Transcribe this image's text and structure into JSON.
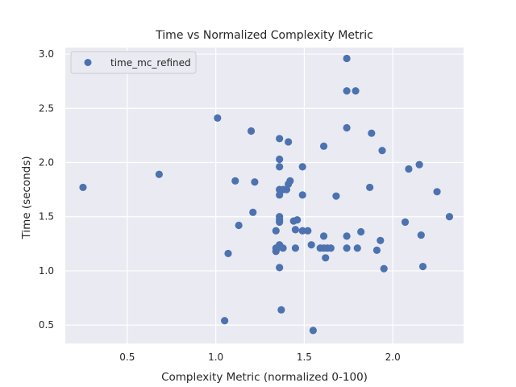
{
  "chart_data": {
    "type": "scatter",
    "title": "Time vs Normalized Complexity Metric",
    "xlabel": "Complexity Metric (normalized 0-100)",
    "ylabel": "Time (seconds)",
    "xlim": [
      0.15,
      2.4
    ],
    "ylim": [
      0.33,
      3.06
    ],
    "xticks": [
      0.5,
      1.0,
      1.5,
      2.0
    ],
    "xtick_labels": [
      "0.5",
      "1.0",
      "1.5",
      "2.0"
    ],
    "yticks": [
      0.5,
      1.0,
      1.5,
      2.0,
      2.5,
      3.0
    ],
    "ytick_labels": [
      "0.5",
      "1.0",
      "1.5",
      "2.0",
      "2.5",
      "3.0"
    ],
    "grid": true,
    "legend_position": "top-left",
    "background_color": "#eaeaf2",
    "series": [
      {
        "name": "time_mc_refined",
        "color": "#4c72b0",
        "points": [
          [
            0.25,
            1.77
          ],
          [
            0.68,
            1.89
          ],
          [
            1.01,
            2.41
          ],
          [
            1.05,
            0.54
          ],
          [
            1.07,
            1.16
          ],
          [
            1.11,
            1.83
          ],
          [
            1.13,
            1.42
          ],
          [
            1.2,
            2.29
          ],
          [
            1.21,
            1.54
          ],
          [
            1.22,
            1.82
          ],
          [
            1.34,
            1.37
          ],
          [
            1.34,
            1.21
          ],
          [
            1.34,
            1.18
          ],
          [
            1.36,
            2.22
          ],
          [
            1.36,
            2.03
          ],
          [
            1.36,
            1.96
          ],
          [
            1.36,
            1.75
          ],
          [
            1.36,
            1.7
          ],
          [
            1.36,
            1.5
          ],
          [
            1.36,
            1.47
          ],
          [
            1.36,
            1.45
          ],
          [
            1.36,
            1.24
          ],
          [
            1.36,
            1.22
          ],
          [
            1.36,
            1.03
          ],
          [
            1.37,
            0.64
          ],
          [
            1.38,
            1.75
          ],
          [
            1.38,
            1.21
          ],
          [
            1.4,
            1.75
          ],
          [
            1.41,
            2.19
          ],
          [
            1.41,
            1.8
          ],
          [
            1.42,
            1.83
          ],
          [
            1.44,
            1.46
          ],
          [
            1.45,
            1.38
          ],
          [
            1.45,
            1.21
          ],
          [
            1.46,
            1.47
          ],
          [
            1.49,
            1.96
          ],
          [
            1.49,
            1.7
          ],
          [
            1.49,
            1.37
          ],
          [
            1.52,
            1.37
          ],
          [
            1.54,
            1.24
          ],
          [
            1.55,
            0.45
          ],
          [
            1.59,
            1.21
          ],
          [
            1.61,
            2.15
          ],
          [
            1.61,
            1.32
          ],
          [
            1.61,
            1.21
          ],
          [
            1.62,
            1.12
          ],
          [
            1.63,
            1.21
          ],
          [
            1.65,
            1.21
          ],
          [
            1.68,
            1.69
          ],
          [
            1.74,
            2.96
          ],
          [
            1.74,
            2.66
          ],
          [
            1.74,
            2.32
          ],
          [
            1.74,
            1.32
          ],
          [
            1.74,
            1.21
          ],
          [
            1.79,
            2.66
          ],
          [
            1.8,
            1.21
          ],
          [
            1.82,
            1.36
          ],
          [
            1.87,
            1.77
          ],
          [
            1.88,
            2.27
          ],
          [
            1.91,
            1.19
          ],
          [
            1.93,
            1.28
          ],
          [
            1.94,
            2.11
          ],
          [
            1.95,
            1.02
          ],
          [
            2.07,
            1.45
          ],
          [
            2.09,
            1.94
          ],
          [
            2.15,
            1.98
          ],
          [
            2.16,
            1.33
          ],
          [
            2.17,
            1.04
          ],
          [
            2.25,
            1.73
          ],
          [
            2.32,
            1.5
          ]
        ]
      }
    ]
  }
}
